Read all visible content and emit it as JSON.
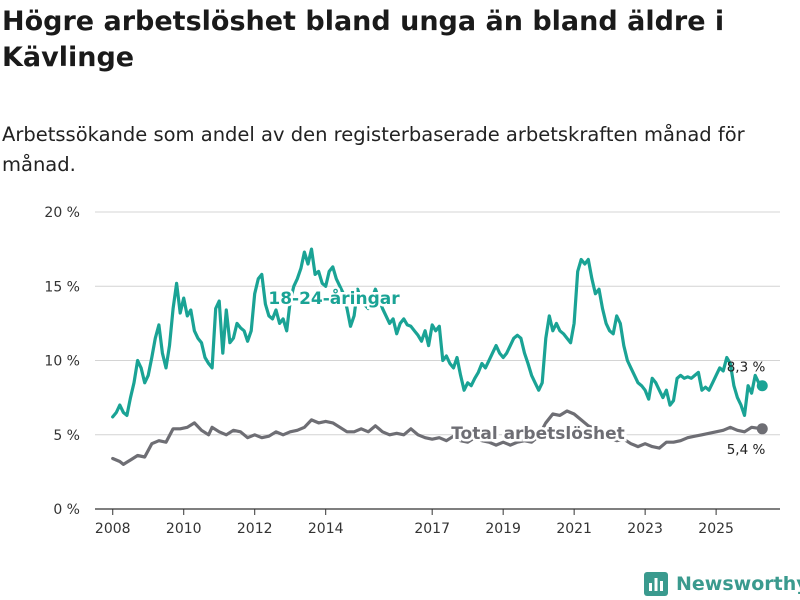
{
  "title": "Högre arbetslöshet bland unga än bland äldre i Kävlinge",
  "subtitle": "Arbetssökande som andel av den registerbaserade arbetskraften månad för månad.",
  "brand": "Newsworthy",
  "colors": {
    "youth": "#1aa395",
    "total": "#6e6e74",
    "grid": "#d4d4d4",
    "axis": "#333333",
    "brand": "#3a9a8e"
  },
  "chart_data": {
    "type": "line",
    "title": "Högre arbetslöshet bland unga än bland äldre i Kävlinge",
    "xlabel": "",
    "ylabel": "",
    "ylim": [
      0,
      20
    ],
    "xlim": [
      2007.5,
      2026.8
    ],
    "y_ticks": [
      0,
      5,
      10,
      15,
      20
    ],
    "y_tick_labels": [
      "0 %",
      "5 %",
      "10 %",
      "15 %",
      "20 %"
    ],
    "x_ticks": [
      2008,
      2010,
      2012,
      2014,
      2017,
      2019,
      2021,
      2023,
      2025
    ],
    "x_tick_labels": [
      "2008",
      "2010",
      "2012",
      "2014",
      "2017",
      "2019",
      "2021",
      "2023",
      "2025"
    ],
    "grid": true,
    "series": [
      {
        "name": "18-24-åringar",
        "end_label": "8,3 %",
        "points": [
          [
            2008.0,
            6.2
          ],
          [
            2008.1,
            6.5
          ],
          [
            2008.2,
            7.0
          ],
          [
            2008.3,
            6.5
          ],
          [
            2008.4,
            6.3
          ],
          [
            2008.5,
            7.5
          ],
          [
            2008.6,
            8.5
          ],
          [
            2008.7,
            10.0
          ],
          [
            2008.8,
            9.5
          ],
          [
            2008.9,
            8.5
          ],
          [
            2009.0,
            9.0
          ],
          [
            2009.1,
            10.2
          ],
          [
            2009.2,
            11.5
          ],
          [
            2009.3,
            12.4
          ],
          [
            2009.4,
            10.5
          ],
          [
            2009.5,
            9.5
          ],
          [
            2009.6,
            11.0
          ],
          [
            2009.7,
            13.5
          ],
          [
            2009.8,
            15.2
          ],
          [
            2009.9,
            13.2
          ],
          [
            2010.0,
            14.2
          ],
          [
            2010.1,
            13.0
          ],
          [
            2010.2,
            13.4
          ],
          [
            2010.3,
            12.0
          ],
          [
            2010.4,
            11.5
          ],
          [
            2010.5,
            11.2
          ],
          [
            2010.6,
            10.2
          ],
          [
            2010.7,
            9.8
          ],
          [
            2010.8,
            9.5
          ],
          [
            2010.9,
            13.5
          ],
          [
            2011.0,
            14.0
          ],
          [
            2011.1,
            10.5
          ],
          [
            2011.2,
            13.4
          ],
          [
            2011.3,
            11.2
          ],
          [
            2011.4,
            11.5
          ],
          [
            2011.5,
            12.5
          ],
          [
            2011.6,
            12.2
          ],
          [
            2011.7,
            12.0
          ],
          [
            2011.8,
            11.3
          ],
          [
            2011.9,
            12.0
          ],
          [
            2012.0,
            14.5
          ],
          [
            2012.1,
            15.5
          ],
          [
            2012.2,
            15.8
          ],
          [
            2012.3,
            13.8
          ],
          [
            2012.4,
            13.0
          ],
          [
            2012.5,
            12.8
          ],
          [
            2012.6,
            13.4
          ],
          [
            2012.7,
            12.5
          ],
          [
            2012.8,
            12.8
          ],
          [
            2012.9,
            12.0
          ],
          [
            2013.0,
            14.0
          ],
          [
            2013.1,
            15.0
          ],
          [
            2013.2,
            15.5
          ],
          [
            2013.3,
            16.2
          ],
          [
            2013.4,
            17.3
          ],
          [
            2013.5,
            16.5
          ],
          [
            2013.6,
            17.5
          ],
          [
            2013.7,
            15.8
          ],
          [
            2013.8,
            16.0
          ],
          [
            2013.9,
            15.2
          ],
          [
            2014.0,
            15.0
          ],
          [
            2014.1,
            16.0
          ],
          [
            2014.2,
            16.3
          ],
          [
            2014.3,
            15.5
          ],
          [
            2014.4,
            15.0
          ],
          [
            2014.5,
            14.5
          ],
          [
            2014.6,
            13.5
          ],
          [
            2014.7,
            12.3
          ],
          [
            2014.8,
            13.0
          ],
          [
            2014.9,
            14.8
          ],
          [
            2015.0,
            14.0
          ],
          [
            2015.2,
            13.5
          ],
          [
            2015.4,
            14.8
          ],
          [
            2015.6,
            13.5
          ],
          [
            2015.8,
            12.5
          ],
          [
            2015.9,
            12.8
          ],
          [
            2016.0,
            11.8
          ],
          [
            2016.1,
            12.5
          ],
          [
            2016.2,
            12.8
          ],
          [
            2016.3,
            12.4
          ],
          [
            2016.4,
            12.3
          ],
          [
            2016.5,
            12.0
          ],
          [
            2016.6,
            11.7
          ],
          [
            2016.7,
            11.3
          ],
          [
            2016.8,
            12.0
          ],
          [
            2016.9,
            11.0
          ],
          [
            2017.0,
            12.4
          ],
          [
            2017.1,
            12.0
          ],
          [
            2017.2,
            12.3
          ],
          [
            2017.3,
            10.0
          ],
          [
            2017.4,
            10.3
          ],
          [
            2017.5,
            9.8
          ],
          [
            2017.6,
            9.5
          ],
          [
            2017.7,
            10.2
          ],
          [
            2017.8,
            9.0
          ],
          [
            2017.9,
            8.0
          ],
          [
            2018.0,
            8.5
          ],
          [
            2018.1,
            8.3
          ],
          [
            2018.2,
            8.8
          ],
          [
            2018.3,
            9.2
          ],
          [
            2018.4,
            9.8
          ],
          [
            2018.5,
            9.5
          ],
          [
            2018.6,
            10.0
          ],
          [
            2018.7,
            10.5
          ],
          [
            2018.8,
            11.0
          ],
          [
            2018.9,
            10.5
          ],
          [
            2019.0,
            10.2
          ],
          [
            2019.1,
            10.5
          ],
          [
            2019.2,
            11.0
          ],
          [
            2019.3,
            11.5
          ],
          [
            2019.4,
            11.7
          ],
          [
            2019.5,
            11.5
          ],
          [
            2019.6,
            10.5
          ],
          [
            2019.7,
            9.8
          ],
          [
            2019.8,
            9.0
          ],
          [
            2019.9,
            8.5
          ],
          [
            2020.0,
            8.0
          ],
          [
            2020.1,
            8.5
          ],
          [
            2020.2,
            11.5
          ],
          [
            2020.3,
            13.0
          ],
          [
            2020.4,
            12.0
          ],
          [
            2020.5,
            12.5
          ],
          [
            2020.6,
            12.0
          ],
          [
            2020.7,
            11.8
          ],
          [
            2020.8,
            11.5
          ],
          [
            2020.9,
            11.2
          ],
          [
            2021.0,
            12.5
          ],
          [
            2021.1,
            16.0
          ],
          [
            2021.2,
            16.8
          ],
          [
            2021.3,
            16.5
          ],
          [
            2021.4,
            16.8
          ],
          [
            2021.5,
            15.5
          ],
          [
            2021.6,
            14.5
          ],
          [
            2021.7,
            14.8
          ],
          [
            2021.8,
            13.5
          ],
          [
            2021.9,
            12.5
          ],
          [
            2022.0,
            12.0
          ],
          [
            2022.1,
            11.8
          ],
          [
            2022.2,
            13.0
          ],
          [
            2022.3,
            12.5
          ],
          [
            2022.4,
            11.0
          ],
          [
            2022.5,
            10.0
          ],
          [
            2022.6,
            9.5
          ],
          [
            2022.7,
            9.0
          ],
          [
            2022.8,
            8.5
          ],
          [
            2022.9,
            8.3
          ],
          [
            2023.0,
            8.0
          ],
          [
            2023.1,
            7.4
          ],
          [
            2023.2,
            8.8
          ],
          [
            2023.3,
            8.5
          ],
          [
            2023.4,
            8.0
          ],
          [
            2023.5,
            7.5
          ],
          [
            2023.6,
            8.0
          ],
          [
            2023.7,
            7.0
          ],
          [
            2023.8,
            7.3
          ],
          [
            2023.9,
            8.8
          ],
          [
            2024.0,
            9.0
          ],
          [
            2024.1,
            8.8
          ],
          [
            2024.2,
            8.9
          ],
          [
            2024.3,
            8.8
          ],
          [
            2024.4,
            9.0
          ],
          [
            2024.5,
            9.2
          ],
          [
            2024.6,
            8.0
          ],
          [
            2024.7,
            8.2
          ],
          [
            2024.8,
            8.0
          ],
          [
            2024.9,
            8.5
          ],
          [
            2025.0,
            9.0
          ],
          [
            2025.1,
            9.5
          ],
          [
            2025.2,
            9.3
          ],
          [
            2025.3,
            10.2
          ],
          [
            2025.4,
            9.8
          ],
          [
            2025.5,
            8.3
          ],
          [
            2025.6,
            7.5
          ],
          [
            2025.7,
            7.0
          ],
          [
            2025.8,
            6.3
          ],
          [
            2025.9,
            8.3
          ],
          [
            2026.0,
            7.8
          ],
          [
            2026.1,
            9.0
          ],
          [
            2026.2,
            8.5
          ],
          [
            2026.3,
            8.3
          ]
        ]
      },
      {
        "name": "Total arbetslöshet",
        "end_label": "5,4 %",
        "points": [
          [
            2008.0,
            3.4
          ],
          [
            2008.2,
            3.2
          ],
          [
            2008.3,
            3.0
          ],
          [
            2008.5,
            3.3
          ],
          [
            2008.7,
            3.6
          ],
          [
            2008.9,
            3.5
          ],
          [
            2009.1,
            4.4
          ],
          [
            2009.3,
            4.6
          ],
          [
            2009.5,
            4.5
          ],
          [
            2009.7,
            5.4
          ],
          [
            2009.9,
            5.4
          ],
          [
            2010.1,
            5.5
          ],
          [
            2010.3,
            5.8
          ],
          [
            2010.5,
            5.3
          ],
          [
            2010.7,
            5.0
          ],
          [
            2010.8,
            5.5
          ],
          [
            2011.0,
            5.2
          ],
          [
            2011.2,
            5.0
          ],
          [
            2011.4,
            5.3
          ],
          [
            2011.6,
            5.2
          ],
          [
            2011.8,
            4.8
          ],
          [
            2012.0,
            5.0
          ],
          [
            2012.2,
            4.8
          ],
          [
            2012.4,
            4.9
          ],
          [
            2012.6,
            5.2
          ],
          [
            2012.8,
            5.0
          ],
          [
            2013.0,
            5.2
          ],
          [
            2013.2,
            5.3
          ],
          [
            2013.4,
            5.5
          ],
          [
            2013.6,
            6.0
          ],
          [
            2013.8,
            5.8
          ],
          [
            2014.0,
            5.9
          ],
          [
            2014.2,
            5.8
          ],
          [
            2014.4,
            5.5
          ],
          [
            2014.6,
            5.2
          ],
          [
            2014.8,
            5.2
          ],
          [
            2015.0,
            5.4
          ],
          [
            2015.2,
            5.2
          ],
          [
            2015.4,
            5.6
          ],
          [
            2015.6,
            5.2
          ],
          [
            2015.8,
            5.0
          ],
          [
            2016.0,
            5.1
          ],
          [
            2016.2,
            5.0
          ],
          [
            2016.4,
            5.4
          ],
          [
            2016.6,
            5.0
          ],
          [
            2016.8,
            4.8
          ],
          [
            2017.0,
            4.7
          ],
          [
            2017.2,
            4.8
          ],
          [
            2017.4,
            4.6
          ],
          [
            2017.6,
            4.9
          ],
          [
            2017.8,
            4.6
          ],
          [
            2018.0,
            4.5
          ],
          [
            2018.2,
            4.8
          ],
          [
            2018.4,
            4.6
          ],
          [
            2018.6,
            4.5
          ],
          [
            2018.8,
            4.3
          ],
          [
            2019.0,
            4.5
          ],
          [
            2019.2,
            4.3
          ],
          [
            2019.4,
            4.5
          ],
          [
            2019.6,
            4.6
          ],
          [
            2019.8,
            4.5
          ],
          [
            2020.0,
            4.9
          ],
          [
            2020.2,
            5.8
          ],
          [
            2020.4,
            6.4
          ],
          [
            2020.6,
            6.3
          ],
          [
            2020.8,
            6.6
          ],
          [
            2021.0,
            6.4
          ],
          [
            2021.2,
            6.0
          ],
          [
            2021.4,
            5.6
          ],
          [
            2021.6,
            5.4
          ],
          [
            2021.8,
            5.0
          ],
          [
            2022.0,
            4.8
          ],
          [
            2022.2,
            4.6
          ],
          [
            2022.4,
            4.7
          ],
          [
            2022.6,
            4.4
          ],
          [
            2022.8,
            4.2
          ],
          [
            2023.0,
            4.4
          ],
          [
            2023.2,
            4.2
          ],
          [
            2023.4,
            4.1
          ],
          [
            2023.6,
            4.5
          ],
          [
            2023.8,
            4.5
          ],
          [
            2024.0,
            4.6
          ],
          [
            2024.2,
            4.8
          ],
          [
            2024.4,
            4.9
          ],
          [
            2024.6,
            5.0
          ],
          [
            2024.8,
            5.1
          ],
          [
            2025.0,
            5.2
          ],
          [
            2025.2,
            5.3
          ],
          [
            2025.4,
            5.5
          ],
          [
            2025.6,
            5.3
          ],
          [
            2025.8,
            5.2
          ],
          [
            2026.0,
            5.5
          ],
          [
            2026.3,
            5.4
          ]
        ]
      }
    ]
  }
}
